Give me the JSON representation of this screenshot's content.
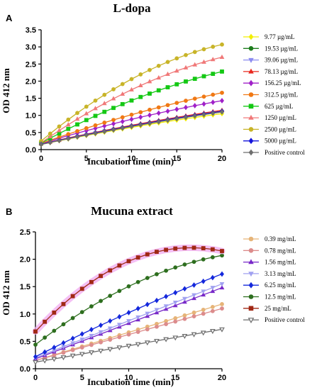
{
  "chart_data": [
    {
      "type": "line",
      "panel": "A",
      "title": "L-dopa",
      "xlabel": "Incubation time (min)",
      "ylabel": "OD 412 nm",
      "xlim": [
        0,
        20
      ],
      "ylim": [
        0,
        3.5
      ],
      "xticks": [
        "0",
        "5",
        "10",
        "15",
        "20"
      ],
      "yticks": [
        "0.0",
        "0.5",
        "1.0",
        "1.5",
        "2.0",
        "2.5",
        "3.0",
        "3.5"
      ],
      "x": [
        0,
        1,
        2,
        3,
        4,
        5,
        6,
        7,
        8,
        9,
        10,
        11,
        12,
        13,
        14,
        15,
        16,
        17,
        18,
        19,
        20
      ],
      "legend_position": "right",
      "series": [
        {
          "name": "9.77 µg/mL",
          "color": "#f2ef00",
          "marker": "diamond",
          "start": 0.15,
          "end": 1.05,
          "bend": 0.05
        },
        {
          "name": "19.53 µg/mL",
          "color": "#1e7d1e",
          "marker": "circle",
          "start": 0.16,
          "end": 1.12,
          "bend": 0.05
        },
        {
          "name": "39.06 µg/mL",
          "color": "#8c8cf0",
          "marker": "triangle-down",
          "start": 0.16,
          "end": 1.1,
          "bend": 0.05
        },
        {
          "name": "78.13 µg/mL",
          "color": "#e8281e",
          "marker": "triangle",
          "start": 0.17,
          "end": 1.15,
          "bend": 0.05
        },
        {
          "name": "156.25 µg/mL",
          "color": "#a020c8",
          "marker": "diamond",
          "start": 0.18,
          "end": 1.43,
          "bend": 0.08
        },
        {
          "name": "312.5 µg/mL",
          "color": "#f07814",
          "marker": "circle",
          "start": 0.18,
          "end": 1.66,
          "bend": 0.1
        },
        {
          "name": "625 µg/mL",
          "color": "#14c814",
          "marker": "square",
          "start": 0.19,
          "end": 2.28,
          "bend": 0.2
        },
        {
          "name": "1250 µg/mL",
          "color": "#f07878",
          "marker": "triangle",
          "start": 0.2,
          "end": 2.7,
          "bend": 0.3
        },
        {
          "name": "2500 µg/mL",
          "color": "#c8b428",
          "marker": "circle",
          "start": 0.25,
          "end": 3.07,
          "bend": 0.4
        },
        {
          "name": "5000 µg/mL",
          "color": "#1414dc",
          "marker": "diamond",
          "start": 0.16,
          "end": 1.12,
          "bend": 0.05
        },
        {
          "name": "Positive control",
          "color": "#6e6e6e",
          "marker": "diamond",
          "start": 0.15,
          "end": 1.1,
          "bend": 0.05
        }
      ]
    },
    {
      "type": "line",
      "panel": "B",
      "title": "Mucuna extract",
      "xlabel": "Incubation time (min)",
      "ylabel": "OD 412 nm",
      "xlim": [
        0,
        20
      ],
      "ylim": [
        0,
        2.5
      ],
      "xticks": [
        "0",
        "5",
        "10",
        "15",
        "20"
      ],
      "yticks": [
        "0.0",
        "0.5",
        "1.0",
        "1.5",
        "2.0",
        "2.5"
      ],
      "x": [
        0,
        1,
        2,
        3,
        4,
        5,
        6,
        7,
        8,
        9,
        10,
        11,
        12,
        13,
        14,
        15,
        16,
        17,
        18,
        19,
        20
      ],
      "legend_position": "right",
      "series": [
        {
          "name": "0.39 mg/mL",
          "color": "#e6b478",
          "marker": "circle",
          "start": 0.15,
          "end": 1.18,
          "bend": 0.0
        },
        {
          "name": "0.78 mg/mL",
          "color": "#dc8c8c",
          "marker": "circle",
          "start": 0.15,
          "end": 1.1,
          "bend": 0.0
        },
        {
          "name": "1.56 mg/mL",
          "color": "#7828c8",
          "marker": "triangle",
          "start": 0.18,
          "end": 1.48,
          "bend": 0.0
        },
        {
          "name": "3.13 mg/mL",
          "color": "#a0a0f0",
          "marker": "triangle-down",
          "start": 0.2,
          "end": 1.55,
          "bend": 0.0
        },
        {
          "name": "6.25 mg/mL",
          "color": "#1428dc",
          "marker": "diamond",
          "start": 0.22,
          "end": 1.73,
          "bend": 0.05
        },
        {
          "name": "12.5 mg/mL",
          "color": "#2d6e1e",
          "marker": "circle",
          "start": 0.44,
          "end": 2.07,
          "bend": 0.25
        },
        {
          "name": "25 mg/mL",
          "color": "#a02814",
          "marker": "square",
          "start": 0.68,
          "end": 2.15,
          "bend": 0.55,
          "halo": "#f0aaf0"
        },
        {
          "name": "Positive control",
          "color": "#6e6e6e",
          "marker": "triangle-down-open",
          "start": 0.12,
          "end": 0.72,
          "bend": 0.0
        }
      ]
    }
  ]
}
